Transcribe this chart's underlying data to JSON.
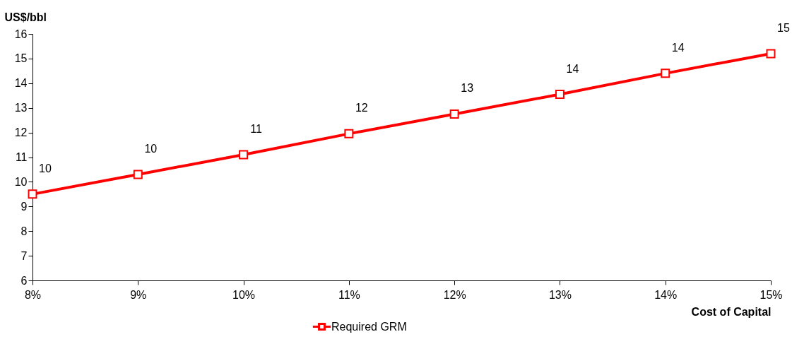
{
  "chart_data": {
    "type": "line",
    "xlabel": "Cost of Capital",
    "ylabel": "US$/bbl",
    "categories": [
      "8%",
      "9%",
      "10%",
      "11%",
      "12%",
      "13%",
      "14%",
      "15%"
    ],
    "series": [
      {
        "name": "Required GRM",
        "color": "#ff0000",
        "values": [
          9.5,
          10.3,
          11.1,
          11.95,
          12.75,
          13.55,
          14.4,
          15.2
        ],
        "value_labels": [
          "10",
          "10",
          "11",
          "12",
          "13",
          "14",
          "14",
          "15"
        ]
      }
    ],
    "ylim": [
      6,
      16
    ],
    "yticks": [
      6,
      7,
      8,
      9,
      10,
      11,
      12,
      13,
      14,
      15,
      16
    ],
    "marker": "square",
    "line_style": "solid",
    "legend": "bottom"
  }
}
